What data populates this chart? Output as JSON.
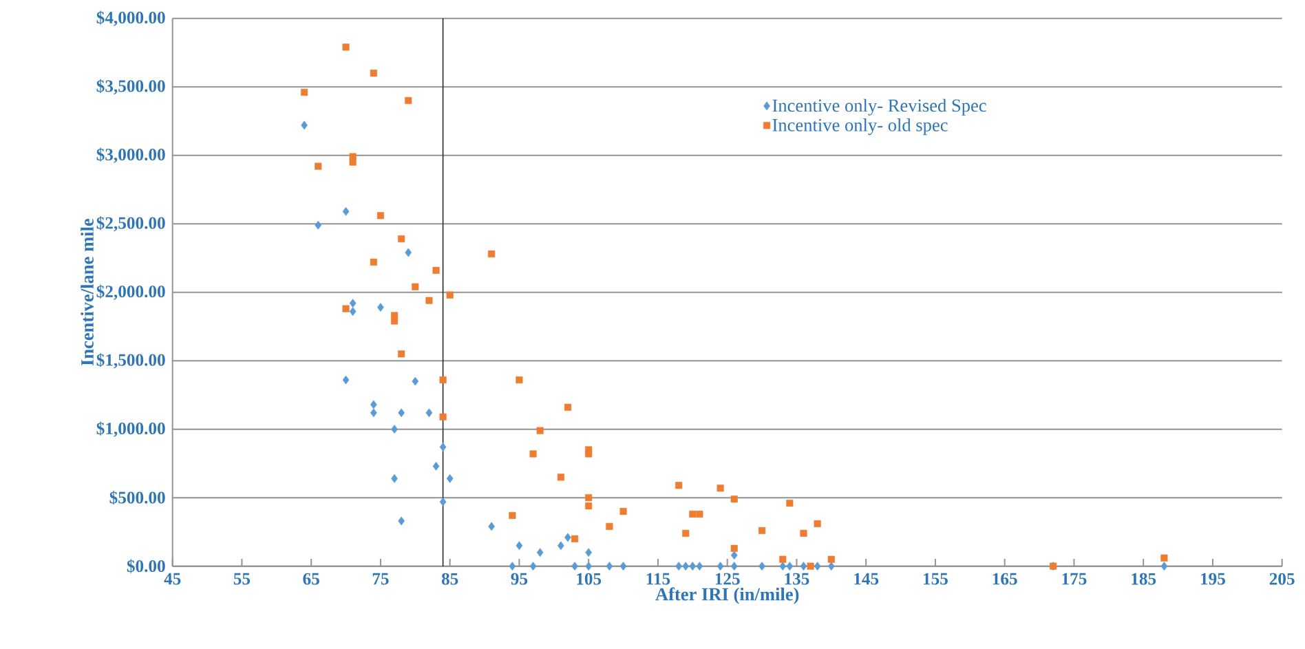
{
  "chart_data": {
    "type": "scatter",
    "xlabel": "After IRI (in/mile)",
    "ylabel": "Incentive/lane mile",
    "xlim": [
      45,
      205
    ],
    "xticks": [
      45,
      55,
      65,
      75,
      85,
      95,
      105,
      115,
      125,
      135,
      145,
      155,
      165,
      175,
      185,
      195,
      205
    ],
    "ylim": [
      0,
      4000
    ],
    "yticks": [
      {
        "value": 0,
        "label": "$0.00"
      },
      {
        "value": 500,
        "label": "$500.00"
      },
      {
        "value": 1000,
        "label": "$1,000.00"
      },
      {
        "value": 1500,
        "label": "$1,500.00"
      },
      {
        "value": 2000,
        "label": "$2,000.00"
      },
      {
        "value": 2500,
        "label": "$2,500.00"
      },
      {
        "value": 3000,
        "label": "$3,000.00"
      },
      {
        "value": 3500,
        "label": "$3,500.00"
      },
      {
        "value": 4000,
        "label": "$4,000.00"
      }
    ],
    "grid": "y",
    "legend": "top right",
    "ref_lines": [
      {
        "axis": "x",
        "value": 84,
        "color": "#000000"
      }
    ],
    "series": [
      {
        "name": "Incentive only- Revised Spec",
        "color": "#5b9bd5",
        "marker": "diamond",
        "x": [
          64,
          66,
          70,
          71,
          71,
          75,
          79,
          70,
          74,
          74,
          78,
          80,
          82,
          77,
          84,
          83,
          77,
          85,
          84,
          78,
          91,
          95,
          98,
          101,
          102,
          105,
          94,
          97,
          103,
          105,
          108,
          110,
          118,
          119,
          120,
          121,
          124,
          126,
          126,
          130,
          133,
          134,
          136,
          138,
          140,
          172,
          188
        ],
        "values": [
          3220,
          2490,
          2590,
          1920,
          1860,
          1890,
          2290,
          1360,
          1180,
          1120,
          1120,
          1350,
          1120,
          1000,
          870,
          730,
          640,
          640,
          470,
          330,
          290,
          150,
          100,
          150,
          210,
          100,
          0,
          0,
          0,
          0,
          0,
          0,
          0,
          0,
          0,
          0,
          0,
          0,
          80,
          0,
          0,
          0,
          0,
          0,
          0,
          0,
          0
        ]
      },
      {
        "name": "Incentive only- old spec",
        "color": "#ed7d31",
        "marker": "square",
        "x": [
          64,
          70,
          74,
          79,
          71,
          71,
          66,
          75,
          78,
          74,
          91,
          83,
          80,
          85,
          82,
          70,
          77,
          77,
          78,
          84,
          84,
          95,
          102,
          98,
          105,
          105,
          97,
          101,
          118,
          124,
          126,
          105,
          105,
          134,
          110,
          120,
          121,
          94,
          119,
          108,
          130,
          138,
          136,
          103,
          126,
          133,
          140,
          137,
          172,
          188
        ],
        "values": [
          3460,
          3790,
          3600,
          3400,
          2990,
          2950,
          2920,
          2560,
          2390,
          2220,
          2280,
          2160,
          2040,
          1980,
          1940,
          1880,
          1830,
          1790,
          1550,
          1360,
          1090,
          1360,
          1160,
          990,
          850,
          820,
          820,
          650,
          590,
          570,
          490,
          500,
          440,
          460,
          400,
          380,
          380,
          370,
          240,
          290,
          260,
          310,
          240,
          200,
          130,
          50,
          50,
          0,
          0,
          60
        ]
      }
    ]
  }
}
